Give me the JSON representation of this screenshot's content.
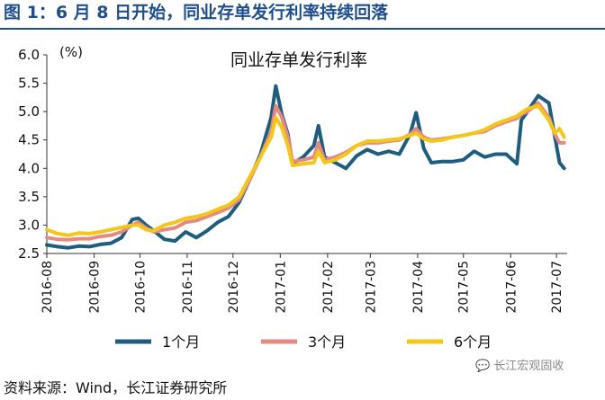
{
  "figure": {
    "title": "图 1：6 月 8 日开始，同业存单发行利率持续回落",
    "source": "资料来源：Wind，长江证券研究所",
    "watermark": "长江宏观固收"
  },
  "chart_data": {
    "type": "line",
    "title": "同业存单发行利率",
    "ylabel": "(%)",
    "ylim": [
      2.5,
      6.0
    ],
    "yticks": [
      "2.5",
      "3.0",
      "3.5",
      "4.0",
      "4.5",
      "5.0",
      "5.5",
      "6.0"
    ],
    "xlim": [
      "2016-08-01",
      "2017-07-08"
    ],
    "xtick_labels": [
      "2016-08",
      "2016-09",
      "2016-10",
      "2016-11",
      "2016-12",
      "2017-01",
      "2017-02",
      "2017-03",
      "2017-04",
      "2017-05",
      "2017-06",
      "2017-07"
    ],
    "grid": false,
    "legend_position": "bottom",
    "series": [
      {
        "name": "1个月",
        "color": "#1f5d7f",
        "points": [
          [
            "2016-08-01",
            2.65
          ],
          [
            "2016-08-08",
            2.62
          ],
          [
            "2016-08-15",
            2.6
          ],
          [
            "2016-08-22",
            2.63
          ],
          [
            "2016-08-29",
            2.62
          ],
          [
            "2016-09-05",
            2.66
          ],
          [
            "2016-09-12",
            2.68
          ],
          [
            "2016-09-19",
            2.78
          ],
          [
            "2016-09-26",
            3.1
          ],
          [
            "2016-09-30",
            3.12
          ],
          [
            "2016-10-05",
            3.0
          ],
          [
            "2016-10-10",
            2.9
          ],
          [
            "2016-10-17",
            2.75
          ],
          [
            "2016-10-24",
            2.72
          ],
          [
            "2016-10-31",
            2.88
          ],
          [
            "2016-11-07",
            2.78
          ],
          [
            "2016-11-14",
            2.9
          ],
          [
            "2016-11-21",
            3.05
          ],
          [
            "2016-11-28",
            3.15
          ],
          [
            "2016-12-05",
            3.4
          ],
          [
            "2016-12-12",
            3.8
          ],
          [
            "2016-12-19",
            4.25
          ],
          [
            "2016-12-26",
            4.9
          ],
          [
            "2016-12-29",
            5.45
          ],
          [
            "2017-01-02",
            4.95
          ],
          [
            "2017-01-06",
            4.6
          ],
          [
            "2017-01-09",
            4.08
          ],
          [
            "2017-01-16",
            4.2
          ],
          [
            "2017-01-23",
            4.4
          ],
          [
            "2017-01-26",
            4.75
          ],
          [
            "2017-01-30",
            4.2
          ],
          [
            "2017-02-06",
            4.1
          ],
          [
            "2017-02-13",
            4.0
          ],
          [
            "2017-02-20",
            4.22
          ],
          [
            "2017-02-27",
            4.33
          ],
          [
            "2017-03-06",
            4.25
          ],
          [
            "2017-03-13",
            4.3
          ],
          [
            "2017-03-20",
            4.25
          ],
          [
            "2017-03-27",
            4.6
          ],
          [
            "2017-03-31",
            4.98
          ],
          [
            "2017-04-05",
            4.35
          ],
          [
            "2017-04-10",
            4.1
          ],
          [
            "2017-04-17",
            4.12
          ],
          [
            "2017-04-24",
            4.12
          ],
          [
            "2017-05-01",
            4.15
          ],
          [
            "2017-05-08",
            4.3
          ],
          [
            "2017-05-15",
            4.2
          ],
          [
            "2017-05-22",
            4.25
          ],
          [
            "2017-05-29",
            4.25
          ],
          [
            "2017-06-05",
            4.08
          ],
          [
            "2017-06-08",
            4.85
          ],
          [
            "2017-06-12",
            5.0
          ],
          [
            "2017-06-19",
            5.28
          ],
          [
            "2017-06-26",
            5.15
          ],
          [
            "2017-06-30",
            4.55
          ],
          [
            "2017-07-03",
            4.1
          ],
          [
            "2017-07-06",
            4.0
          ]
        ]
      },
      {
        "name": "3个月",
        "color": "#e58a83",
        "points": [
          [
            "2016-08-01",
            2.78
          ],
          [
            "2016-08-08",
            2.75
          ],
          [
            "2016-08-15",
            2.74
          ],
          [
            "2016-08-22",
            2.76
          ],
          [
            "2016-08-29",
            2.76
          ],
          [
            "2016-09-05",
            2.8
          ],
          [
            "2016-09-12",
            2.82
          ],
          [
            "2016-09-19",
            2.88
          ],
          [
            "2016-09-26",
            3.0
          ],
          [
            "2016-09-30",
            3.05
          ],
          [
            "2016-10-05",
            2.95
          ],
          [
            "2016-10-10",
            2.88
          ],
          [
            "2016-10-17",
            2.92
          ],
          [
            "2016-10-24",
            2.95
          ],
          [
            "2016-10-31",
            3.05
          ],
          [
            "2016-11-07",
            3.08
          ],
          [
            "2016-11-14",
            3.15
          ],
          [
            "2016-11-21",
            3.22
          ],
          [
            "2016-11-28",
            3.3
          ],
          [
            "2016-12-05",
            3.45
          ],
          [
            "2016-12-12",
            3.8
          ],
          [
            "2016-12-19",
            4.2
          ],
          [
            "2016-12-26",
            4.65
          ],
          [
            "2016-12-29",
            5.1
          ],
          [
            "2017-01-02",
            4.9
          ],
          [
            "2017-01-06",
            4.55
          ],
          [
            "2017-01-09",
            4.12
          ],
          [
            "2017-01-16",
            4.15
          ],
          [
            "2017-01-23",
            4.2
          ],
          [
            "2017-01-26",
            4.45
          ],
          [
            "2017-01-30",
            4.15
          ],
          [
            "2017-02-06",
            4.2
          ],
          [
            "2017-02-13",
            4.28
          ],
          [
            "2017-02-20",
            4.4
          ],
          [
            "2017-02-27",
            4.45
          ],
          [
            "2017-03-06",
            4.45
          ],
          [
            "2017-03-13",
            4.48
          ],
          [
            "2017-03-20",
            4.5
          ],
          [
            "2017-03-27",
            4.6
          ],
          [
            "2017-03-31",
            4.7
          ],
          [
            "2017-04-05",
            4.55
          ],
          [
            "2017-04-10",
            4.5
          ],
          [
            "2017-04-17",
            4.52
          ],
          [
            "2017-04-24",
            4.55
          ],
          [
            "2017-05-01",
            4.58
          ],
          [
            "2017-05-08",
            4.62
          ],
          [
            "2017-05-15",
            4.65
          ],
          [
            "2017-05-22",
            4.75
          ],
          [
            "2017-05-29",
            4.82
          ],
          [
            "2017-06-05",
            4.88
          ],
          [
            "2017-06-08",
            4.95
          ],
          [
            "2017-06-12",
            5.0
          ],
          [
            "2017-06-19",
            5.15
          ],
          [
            "2017-06-26",
            4.9
          ],
          [
            "2017-06-30",
            4.6
          ],
          [
            "2017-07-03",
            4.45
          ],
          [
            "2017-07-06",
            4.45
          ]
        ]
      },
      {
        "name": "6个月",
        "color": "#f2c71a",
        "points": [
          [
            "2016-08-01",
            2.92
          ],
          [
            "2016-08-08",
            2.85
          ],
          [
            "2016-08-15",
            2.82
          ],
          [
            "2016-08-22",
            2.86
          ],
          [
            "2016-08-29",
            2.85
          ],
          [
            "2016-09-05",
            2.88
          ],
          [
            "2016-09-12",
            2.92
          ],
          [
            "2016-09-19",
            2.96
          ],
          [
            "2016-09-26",
            3.0
          ],
          [
            "2016-09-30",
            3.0
          ],
          [
            "2016-10-05",
            2.92
          ],
          [
            "2016-10-10",
            2.9
          ],
          [
            "2016-10-17",
            3.0
          ],
          [
            "2016-10-24",
            3.05
          ],
          [
            "2016-10-31",
            3.12
          ],
          [
            "2016-11-07",
            3.15
          ],
          [
            "2016-11-14",
            3.2
          ],
          [
            "2016-11-21",
            3.28
          ],
          [
            "2016-11-28",
            3.35
          ],
          [
            "2016-12-05",
            3.5
          ],
          [
            "2016-12-12",
            3.85
          ],
          [
            "2016-12-19",
            4.2
          ],
          [
            "2016-12-26",
            4.55
          ],
          [
            "2016-12-29",
            4.9
          ],
          [
            "2017-01-02",
            4.72
          ],
          [
            "2017-01-06",
            4.4
          ],
          [
            "2017-01-09",
            4.05
          ],
          [
            "2017-01-16",
            4.08
          ],
          [
            "2017-01-23",
            4.1
          ],
          [
            "2017-01-26",
            4.3
          ],
          [
            "2017-01-30",
            4.1
          ],
          [
            "2017-02-06",
            4.15
          ],
          [
            "2017-02-13",
            4.25
          ],
          [
            "2017-02-20",
            4.4
          ],
          [
            "2017-02-27",
            4.48
          ],
          [
            "2017-03-06",
            4.48
          ],
          [
            "2017-03-13",
            4.5
          ],
          [
            "2017-03-20",
            4.52
          ],
          [
            "2017-03-27",
            4.58
          ],
          [
            "2017-03-31",
            4.62
          ],
          [
            "2017-04-05",
            4.52
          ],
          [
            "2017-04-10",
            4.48
          ],
          [
            "2017-04-17",
            4.5
          ],
          [
            "2017-04-24",
            4.55
          ],
          [
            "2017-05-01",
            4.58
          ],
          [
            "2017-05-08",
            4.62
          ],
          [
            "2017-05-15",
            4.68
          ],
          [
            "2017-05-22",
            4.78
          ],
          [
            "2017-05-29",
            4.85
          ],
          [
            "2017-06-05",
            4.92
          ],
          [
            "2017-06-08",
            4.98
          ],
          [
            "2017-06-12",
            5.05
          ],
          [
            "2017-06-19",
            5.1
          ],
          [
            "2017-06-26",
            4.85
          ],
          [
            "2017-06-30",
            4.62
          ],
          [
            "2017-07-03",
            4.7
          ],
          [
            "2017-07-06",
            4.55
          ]
        ]
      }
    ]
  }
}
